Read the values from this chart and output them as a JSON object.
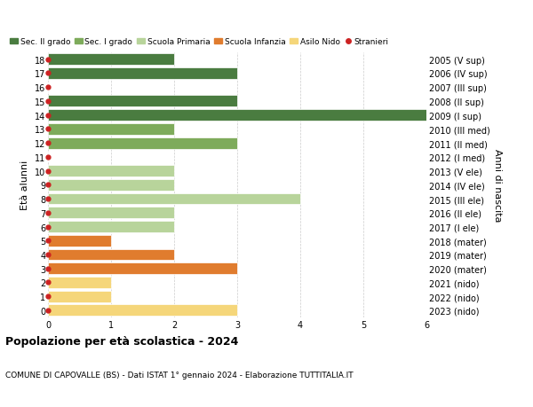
{
  "ages": [
    18,
    17,
    16,
    15,
    14,
    13,
    12,
    11,
    10,
    9,
    8,
    7,
    6,
    5,
    4,
    3,
    2,
    1,
    0
  ],
  "right_labels": [
    "2005 (V sup)",
    "2006 (IV sup)",
    "2007 (III sup)",
    "2008 (II sup)",
    "2009 (I sup)",
    "2010 (III med)",
    "2011 (II med)",
    "2012 (I med)",
    "2013 (V ele)",
    "2014 (IV ele)",
    "2015 (III ele)",
    "2016 (II ele)",
    "2017 (I ele)",
    "2018 (mater)",
    "2019 (mater)",
    "2020 (mater)",
    "2021 (nido)",
    "2022 (nido)",
    "2023 (nido)"
  ],
  "bars": [
    {
      "age": 18,
      "category": "Sec. II grado",
      "value": 2
    },
    {
      "age": 17,
      "category": "Sec. II grado",
      "value": 3
    },
    {
      "age": 16,
      "category": "Sec. II grado",
      "value": 0
    },
    {
      "age": 15,
      "category": "Sec. II grado",
      "value": 3
    },
    {
      "age": 14,
      "category": "Sec. II grado",
      "value": 6
    },
    {
      "age": 13,
      "category": "Sec. I grado",
      "value": 2
    },
    {
      "age": 12,
      "category": "Sec. I grado",
      "value": 3
    },
    {
      "age": 11,
      "category": "Sec. I grado",
      "value": 0
    },
    {
      "age": 10,
      "category": "Scuola Primaria",
      "value": 2
    },
    {
      "age": 9,
      "category": "Scuola Primaria",
      "value": 2
    },
    {
      "age": 8,
      "category": "Scuola Primaria",
      "value": 4
    },
    {
      "age": 7,
      "category": "Scuola Primaria",
      "value": 2
    },
    {
      "age": 6,
      "category": "Scuola Primaria",
      "value": 2
    },
    {
      "age": 5,
      "category": "Scuola Infanzia",
      "value": 1
    },
    {
      "age": 4,
      "category": "Scuola Infanzia",
      "value": 2
    },
    {
      "age": 3,
      "category": "Scuola Infanzia",
      "value": 3
    },
    {
      "age": 2,
      "category": "Asilo Nido",
      "value": 1
    },
    {
      "age": 1,
      "category": "Asilo Nido",
      "value": 1
    },
    {
      "age": 0,
      "category": "Asilo Nido",
      "value": 3
    }
  ],
  "stranieri_ages": [
    18,
    17,
    16,
    15,
    14,
    13,
    12,
    11,
    10,
    9,
    8,
    7,
    6,
    5,
    4,
    3,
    2,
    1,
    0
  ],
  "colors": {
    "Sec. II grado": "#4a7c40",
    "Sec. I grado": "#7eab5b",
    "Scuola Primaria": "#b8d49b",
    "Scuola Infanzia": "#e07c2e",
    "Asilo Nido": "#f5d67a"
  },
  "stranieri_color": "#cc2222",
  "ylabel": "Età alunni",
  "right_ylabel": "Anni di nascita",
  "title": "Popolazione per età scolastica - 2024",
  "subtitle": "COMUNE DI CAPOVALLE (BS) - Dati ISTAT 1° gennaio 2024 - Elaborazione TUTTITALIA.IT",
  "xlim": [
    0,
    6
  ],
  "xticks": [
    0,
    1,
    2,
    3,
    4,
    5,
    6
  ],
  "background_color": "#ffffff",
  "grid_color": "#cccccc",
  "legend_order": [
    "Sec. II grado",
    "Sec. I grado",
    "Scuola Primaria",
    "Scuola Infanzia",
    "Asilo Nido",
    "Stranieri"
  ]
}
